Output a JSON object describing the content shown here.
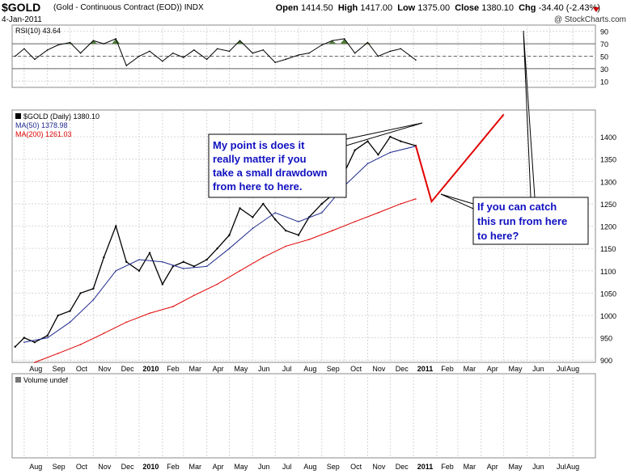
{
  "header": {
    "symbol": "$GOLD",
    "description": "(Gold - Continuous Contract (EOD))",
    "exchange": "INDX",
    "date": "4-Jan-2011",
    "watermark": "@ StockCharts.com",
    "open_label": "Open",
    "open": "1414.50",
    "high_label": "High",
    "high": "1417.00",
    "low_label": "Low",
    "low": "1375.00",
    "close_label": "Close",
    "close": "1380.10",
    "chg_label": "Chg",
    "chg": "-34.40 (-2.43%)"
  },
  "colors": {
    "price": "#000000",
    "ma50": "#1f2a8c",
    "ma200": "#e00000",
    "annotation_line": "#e00000",
    "rsi_fill": "#4f7a3a",
    "callout_text": "#1010c0"
  },
  "chart_data": [
    {
      "type": "line",
      "title": "RSI(10) 43.64",
      "ylim": [
        0,
        100
      ],
      "yticks": [
        10,
        30,
        50,
        70,
        90
      ],
      "overbought": 70,
      "oversold": 30,
      "fill_above": "rsi_fill",
      "x": [
        "2009-07-20",
        "2009-08-01",
        "2009-08-15",
        "2009-09-01",
        "2009-09-15",
        "2009-10-01",
        "2009-10-15",
        "2009-11-01",
        "2009-11-15",
        "2009-12-01",
        "2009-12-15",
        "2010-01-01",
        "2010-01-15",
        "2010-02-01",
        "2010-02-15",
        "2010-03-01",
        "2010-03-15",
        "2010-04-01",
        "2010-04-15",
        "2010-05-01",
        "2010-05-15",
        "2010-06-01",
        "2010-06-15",
        "2010-07-01",
        "2010-07-15",
        "2010-08-01",
        "2010-08-15",
        "2010-09-01",
        "2010-09-15",
        "2010-10-01",
        "2010-10-15",
        "2010-11-01",
        "2010-11-15",
        "2010-12-01",
        "2010-12-15",
        "2011-01-04"
      ],
      "values": [
        50,
        62,
        45,
        60,
        68,
        72,
        55,
        75,
        70,
        78,
        35,
        50,
        58,
        42,
        55,
        48,
        60,
        45,
        62,
        58,
        75,
        55,
        60,
        40,
        45,
        52,
        55,
        68,
        75,
        78,
        55,
        72,
        50,
        58,
        62,
        44
      ]
    },
    {
      "type": "line",
      "title": "$GOLD (Daily) 1380.10",
      "legend": [
        "$GOLD (Daily) 1380.10",
        "MA(50) 1378.98",
        "MA(200) 1261.03"
      ],
      "ylim": [
        895,
        1460
      ],
      "yticks": [
        900,
        950,
        1000,
        1050,
        1100,
        1150,
        1200,
        1250,
        1300,
        1350,
        1400
      ],
      "xticks": [
        "Aug",
        "Sep",
        "Oct",
        "Nov",
        "Dec",
        "2010",
        "Feb",
        "Mar",
        "Apr",
        "May",
        "Jun",
        "Jul",
        "Aug",
        "Sep",
        "Oct",
        "Nov",
        "Dec",
        "2011",
        "Feb",
        "Mar",
        "Apr",
        "May",
        "Jun",
        "Jul",
        "Aug"
      ],
      "series": [
        {
          "name": "$GOLD (Daily) 1380.10",
          "x": [
            "2009-07-20",
            "2009-08-01",
            "2009-08-15",
            "2009-09-01",
            "2009-09-15",
            "2009-10-01",
            "2009-10-15",
            "2009-11-01",
            "2009-11-15",
            "2009-12-01",
            "2009-12-15",
            "2010-01-01",
            "2010-01-15",
            "2010-02-01",
            "2010-02-15",
            "2010-03-01",
            "2010-03-15",
            "2010-04-01",
            "2010-04-15",
            "2010-05-01",
            "2010-05-15",
            "2010-06-01",
            "2010-06-15",
            "2010-07-01",
            "2010-07-15",
            "2010-08-01",
            "2010-08-15",
            "2010-09-01",
            "2010-09-15",
            "2010-10-01",
            "2010-10-15",
            "2010-11-01",
            "2010-11-15",
            "2010-12-01",
            "2010-12-15",
            "2011-01-04"
          ],
          "values": [
            930,
            950,
            940,
            955,
            1000,
            1010,
            1050,
            1060,
            1130,
            1200,
            1120,
            1100,
            1140,
            1070,
            1110,
            1120,
            1110,
            1125,
            1150,
            1180,
            1240,
            1220,
            1250,
            1215,
            1190,
            1180,
            1220,
            1250,
            1270,
            1320,
            1370,
            1390,
            1360,
            1400,
            1390,
            1380
          ]
        },
        {
          "name": "MA(50) 1378.98",
          "x": [
            "2009-08-01",
            "2009-09-01",
            "2009-10-01",
            "2009-11-01",
            "2009-12-01",
            "2010-01-01",
            "2010-02-01",
            "2010-03-01",
            "2010-04-01",
            "2010-05-01",
            "2010-06-01",
            "2010-07-01",
            "2010-08-01",
            "2010-09-01",
            "2010-10-01",
            "2010-11-01",
            "2010-12-01",
            "2011-01-04"
          ],
          "values": [
            940,
            950,
            985,
            1035,
            1100,
            1125,
            1120,
            1105,
            1110,
            1150,
            1195,
            1230,
            1210,
            1230,
            1290,
            1340,
            1365,
            1379
          ]
        },
        {
          "name": "MA(200) 1261.03",
          "x": [
            "2009-08-15",
            "2009-09-15",
            "2009-10-15",
            "2009-11-15",
            "2009-12-15",
            "2010-01-15",
            "2010-02-15",
            "2010-03-15",
            "2010-04-15",
            "2010-05-15",
            "2010-06-15",
            "2010-07-15",
            "2010-08-15",
            "2010-09-15",
            "2010-10-15",
            "2010-11-15",
            "2010-12-15",
            "2011-01-04"
          ],
          "values": [
            895,
            915,
            935,
            960,
            985,
            1005,
            1020,
            1045,
            1070,
            1100,
            1130,
            1155,
            1170,
            1190,
            1210,
            1230,
            1250,
            1261
          ]
        }
      ]
    },
    {
      "type": "line",
      "title": "Volume undef",
      "xticks": [
        "Aug",
        "Sep",
        "Oct",
        "Nov",
        "Dec",
        "2010",
        "Feb",
        "Mar",
        "Apr",
        "May",
        "Jun",
        "Jul",
        "Aug",
        "Sep",
        "Oct",
        "Nov",
        "Dec",
        "2011",
        "Feb",
        "Mar",
        "Apr",
        "May",
        "Jun",
        "Jul",
        "Aug"
      ],
      "values": []
    }
  ],
  "annotations": {
    "callout_left": [
      "My point is does it",
      "really matter if you",
      "take a small drawdown",
      "from here to here."
    ],
    "callout_right": [
      "If you can catch",
      "this run from here",
      "to here?"
    ]
  }
}
